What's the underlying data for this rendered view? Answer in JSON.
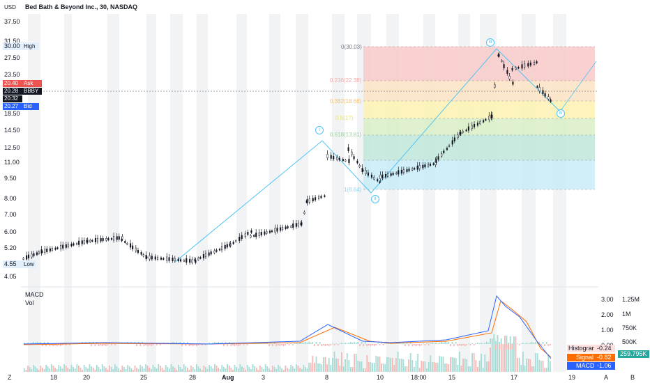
{
  "header": {
    "currency": "USD",
    "title": "Bed Bath & Beyond Inc., 30, NASDAQ"
  },
  "price_axis": {
    "labels": [
      "37.50",
      "31.50",
      "27.50",
      "23.50",
      "18.50",
      "14.50",
      "12.50",
      "11.00",
      "9.50",
      "8.00",
      "7.00",
      "6.00",
      "5.20",
      "4.05"
    ],
    "high": {
      "label": "High",
      "value": "30.00"
    },
    "low": {
      "label": "Low",
      "value": "4.55"
    },
    "ask": {
      "label": "Ask",
      "value": "20.40"
    },
    "last": {
      "label": "BBBY",
      "value": "20.28",
      "countdown": "20:32"
    },
    "bid": {
      "label": "Bid",
      "value": "20.27"
    }
  },
  "time_axis": {
    "labels": [
      "18",
      "20",
      "25",
      "28",
      "Aug",
      "3",
      "8",
      "10",
      "18:00",
      "15",
      "17",
      "19"
    ],
    "left_icon": "Z",
    "right_icons": [
      "A",
      "B"
    ]
  },
  "fib": {
    "levels": [
      {
        "label": "0(30.03)",
        "color": "#787b86"
      },
      {
        "label": "0.236(22.38)",
        "color": "#f7a8a8"
      },
      {
        "label": "0.382(18.68)",
        "color": "#f5c26b"
      },
      {
        "label": "0.5(1?)",
        "color": "#e8e36a"
      },
      {
        "label": "0.618(13.81)",
        "color": "#9ccf9c"
      },
      {
        "label": "1(8.64)",
        "color": "#8fd3f4"
      }
    ]
  },
  "waves": [
    "i",
    "ii",
    "iii",
    "iv"
  ],
  "indicators": {
    "macd_title": "MACD",
    "vol_title": "Vol",
    "macd_axis": [
      "3.00",
      "2.00",
      "1.00",
      "0.00"
    ],
    "vol_axis": [
      "1.25M",
      "1M",
      "750K",
      "500K"
    ],
    "histogram": {
      "label": "Histogram",
      "value": "-0.24"
    },
    "signal": {
      "label": "Signal",
      "value": "-0.82"
    },
    "macd": {
      "label": "MACD",
      "value": "-1.06"
    },
    "volume": "259.795K"
  },
  "colors": {
    "up": "#26a69a",
    "down": "#ef5350",
    "candle": "#131722",
    "macd_line": "#2962ff",
    "signal_line": "#ff6d00",
    "ask": "#ef5350",
    "bid": "#2962ff",
    "elliott": "#4fc3f7"
  }
}
